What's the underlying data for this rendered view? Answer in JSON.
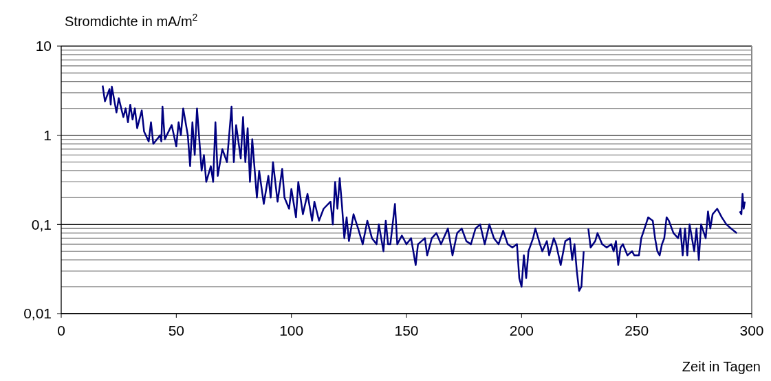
{
  "chart_data": {
    "type": "line",
    "xlabel": "Zeit in Tagen",
    "ylabel": "Stromdichte in mA/m$^{2}$",
    "log": "y",
    "grid": "y",
    "marker": "none",
    "line_style": "solid",
    "xlim": [
      0,
      300
    ],
    "xticks": [
      0,
      50,
      100,
      150,
      200,
      250,
      300
    ],
    "ylim": [
      0.01,
      10
    ],
    "yticks": [
      {
        "value": 0.01,
        "label": "0,01"
      },
      {
        "value": 0.02,
        "label": null
      },
      {
        "value": 0.03,
        "label": null
      },
      {
        "value": 0.04,
        "label": null
      },
      {
        "value": 0.05,
        "label": null
      },
      {
        "value": 0.06,
        "label": null
      },
      {
        "value": 0.07,
        "label": null
      },
      {
        "value": 0.08,
        "label": null
      },
      {
        "value": 0.09,
        "label": null
      },
      {
        "value": 0.1,
        "label": "0,1"
      },
      {
        "value": 0.2,
        "label": null
      },
      {
        "value": 0.3,
        "label": null
      },
      {
        "value": 0.4,
        "label": null
      },
      {
        "value": 0.5,
        "label": null
      },
      {
        "value": 0.6,
        "label": null
      },
      {
        "value": 0.7,
        "label": null
      },
      {
        "value": 0.8,
        "label": null
      },
      {
        "value": 0.9,
        "label": null
      },
      {
        "value": 1,
        "label": "1"
      },
      {
        "value": 2,
        "label": null
      },
      {
        "value": 3,
        "label": null
      },
      {
        "value": 4,
        "label": null
      },
      {
        "value": 5,
        "label": null
      },
      {
        "value": 6,
        "label": null
      },
      {
        "value": 7,
        "label": null
      },
      {
        "value": 8,
        "label": null
      },
      {
        "value": 9,
        "label": null
      },
      {
        "value": 10,
        "label": "10"
      }
    ],
    "x": [
      18,
      19,
      21,
      21.5,
      22,
      24,
      25,
      27,
      28,
      29,
      30,
      31,
      32,
      33,
      35,
      36,
      38,
      39,
      40,
      43,
      43.5,
      44,
      45,
      48,
      50,
      51,
      52,
      53,
      55,
      56,
      57,
      58,
      59,
      61,
      62,
      63,
      65,
      66,
      67,
      68,
      70,
      72,
      74,
      75,
      76,
      78,
      79,
      80,
      81,
      82,
      83,
      85,
      86,
      88,
      90,
      91,
      92,
      94,
      96,
      97,
      99,
      100,
      102,
      103,
      105,
      107,
      109,
      110,
      112,
      114,
      117,
      118,
      119,
      120,
      121,
      122,
      123,
      124,
      125,
      127,
      129,
      131,
      133,
      135,
      137,
      138,
      140,
      141,
      142,
      143,
      145,
      146,
      148,
      150,
      152,
      154,
      155,
      158,
      159,
      161,
      163,
      165,
      168,
      170,
      172,
      174,
      176,
      178,
      180,
      182,
      184,
      186,
      188,
      190,
      192,
      194,
      196,
      198,
      199,
      200,
      201,
      202,
      203,
      205,
      206,
      208,
      209,
      211,
      212,
      214,
      215,
      217,
      219,
      221,
      222,
      223,
      224,
      225,
      226,
      227,
      228,
      229,
      230,
      232,
      233,
      235,
      237,
      239,
      240,
      241,
      242,
      243,
      244,
      246,
      248,
      249,
      251,
      252,
      254,
      255,
      257,
      258,
      259,
      260,
      261,
      262,
      263,
      264,
      266,
      268,
      269,
      270,
      271,
      272,
      273,
      275,
      276,
      277,
      278,
      280,
      281,
      282,
      283,
      285,
      287,
      289,
      291,
      293.5,
      294,
      294.8,
      295.5,
      296,
      296.5,
      297
    ],
    "series": [
      {
        "color": "#000080",
        "values": [
          3.6,
          2.4,
          3.3,
          2.2,
          3.5,
          1.8,
          2.6,
          1.6,
          2.0,
          1.4,
          2.2,
          1.5,
          2.0,
          1.2,
          1.9,
          1.1,
          0.85,
          1.4,
          0.8,
          1.0,
          0.85,
          2.1,
          0.9,
          1.3,
          0.75,
          1.4,
          1.0,
          2.0,
          1.0,
          0.45,
          1.4,
          0.6,
          2.0,
          0.4,
          0.6,
          0.3,
          0.45,
          0.3,
          1.4,
          0.35,
          0.7,
          0.5,
          2.1,
          0.5,
          1.3,
          0.55,
          1.6,
          0.5,
          1.2,
          0.3,
          0.9,
          0.2,
          0.4,
          0.17,
          0.35,
          0.2,
          0.5,
          0.18,
          0.42,
          0.2,
          0.15,
          0.25,
          0.12,
          0.3,
          0.13,
          0.22,
          0.11,
          0.18,
          0.11,
          0.15,
          0.18,
          0.1,
          0.3,
          0.15,
          0.33,
          0.16,
          0.07,
          0.12,
          0.065,
          0.13,
          0.09,
          0.06,
          0.11,
          0.07,
          0.06,
          0.1,
          0.05,
          0.11,
          0.06,
          0.06,
          0.17,
          0.06,
          0.075,
          0.06,
          0.07,
          0.035,
          0.06,
          0.07,
          0.045,
          0.07,
          0.08,
          0.06,
          0.09,
          0.045,
          0.08,
          0.09,
          0.065,
          0.06,
          0.09,
          0.1,
          0.06,
          0.1,
          0.07,
          0.06,
          0.085,
          0.06,
          0.055,
          0.06,
          0.025,
          0.02,
          0.045,
          0.025,
          0.05,
          0.07,
          0.09,
          0.06,
          0.05,
          0.065,
          0.045,
          0.07,
          0.06,
          0.035,
          0.065,
          0.07,
          0.04,
          0.06,
          0.03,
          0.018,
          0.02,
          0.05,
          null,
          0.09,
          0.055,
          0.065,
          0.08,
          0.06,
          0.055,
          0.06,
          0.05,
          0.065,
          0.035,
          0.055,
          0.06,
          0.045,
          0.05,
          0.045,
          0.045,
          0.07,
          0.1,
          0.12,
          0.11,
          0.07,
          0.05,
          0.045,
          0.06,
          0.07,
          0.12,
          0.11,
          0.08,
          0.07,
          0.09,
          0.045,
          0.09,
          0.045,
          0.1,
          0.05,
          0.09,
          0.04,
          0.1,
          0.07,
          0.14,
          0.09,
          0.13,
          0.15,
          0.12,
          0.1,
          0.09,
          0.08,
          null,
          0.14,
          0.13,
          0.22,
          0.15,
          0.18
        ]
      }
    ]
  }
}
